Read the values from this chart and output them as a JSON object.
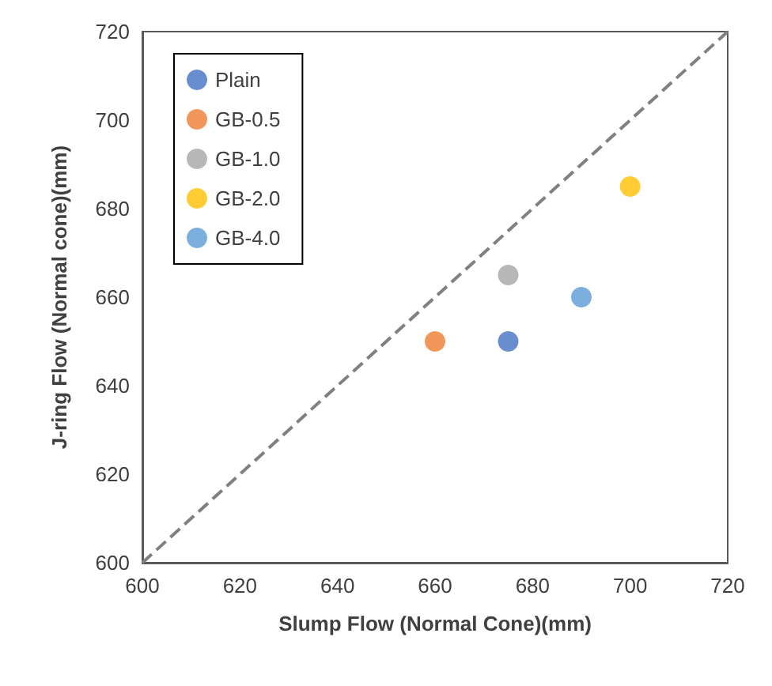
{
  "chart_data": {
    "type": "scatter",
    "xlabel": "Slump Flow (Normal Cone)(mm)",
    "ylabel": "J-ring Flow (Normal cone)(mm)",
    "xlim": [
      600,
      720
    ],
    "xticks": [
      600,
      620,
      640,
      660,
      680,
      700,
      720
    ],
    "ylim": [
      600,
      720
    ],
    "yticks": [
      600,
      620,
      640,
      660,
      680,
      700,
      720
    ],
    "grid": false,
    "legend": "top left",
    "marker": "circle",
    "series": [
      {
        "name": "Plain",
        "color": "#4472c4",
        "x": [
          675
        ],
        "values": [
          650
        ]
      },
      {
        "name": "GB-0.5",
        "color": "#ed7d31",
        "x": [
          660
        ],
        "values": [
          650
        ]
      },
      {
        "name": "GB-1.0",
        "color": "#a5a5a5",
        "x": [
          675
        ],
        "values": [
          665
        ]
      },
      {
        "name": "GB-2.0",
        "color": "#ffc000",
        "x": [
          700
        ],
        "values": [
          685
        ]
      },
      {
        "name": "GB-4.0",
        "color": "#5b9bd5",
        "x": [
          690
        ],
        "values": [
          660
        ]
      },
      {
        "type": "line",
        "color": "#808080",
        "line_style": "dashed",
        "marker": "none",
        "x": [
          600,
          720
        ],
        "values": [
          600,
          720
        ]
      }
    ]
  }
}
